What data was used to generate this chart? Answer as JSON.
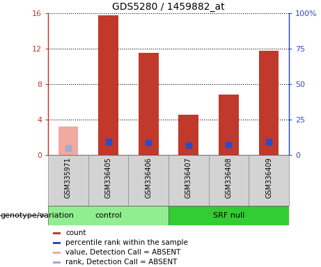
{
  "title": "GDS5280 / 1459882_at",
  "samples": [
    "GSM335971",
    "GSM336405",
    "GSM336406",
    "GSM336407",
    "GSM336408",
    "GSM336409"
  ],
  "groups": [
    "control",
    "control",
    "control",
    "SRF null",
    "SRF null",
    "SRF null"
  ],
  "bar_values": [
    null,
    15.8,
    11.5,
    4.5,
    6.8,
    11.8
  ],
  "bar_values_absent": [
    3.2,
    null,
    null,
    null,
    null,
    null
  ],
  "rank_values": [
    null,
    9.0,
    8.5,
    6.8,
    7.0,
    9.0
  ],
  "rank_values_absent": [
    5.0,
    null,
    null,
    null,
    null,
    null
  ],
  "bar_color": "#c0392b",
  "bar_color_absent": "#f1a9a0",
  "rank_color": "#2e4ac4",
  "rank_color_absent": "#a0aad4",
  "ylim_left": [
    0,
    16
  ],
  "ylim_right": [
    0,
    100
  ],
  "yticks_left": [
    0,
    4,
    8,
    12,
    16
  ],
  "ytick_labels_left": [
    "0",
    "4",
    "8",
    "12",
    "16"
  ],
  "yticks_right": [
    0,
    25,
    50,
    75,
    100
  ],
  "ytick_labels_right": [
    "0",
    "25",
    "50",
    "75",
    "100%"
  ],
  "group_colors": {
    "control": "#90ee90",
    "SRF null": "#32cd32"
  },
  "group_label": "genotype/variation",
  "bar_width": 0.5,
  "rank_marker_size": 40,
  "legend_items": [
    {
      "label": "count",
      "color": "#c0392b"
    },
    {
      "label": "percentile rank within the sample",
      "color": "#2e4ac4"
    },
    {
      "label": "value, Detection Call = ABSENT",
      "color": "#f1a9a0"
    },
    {
      "label": "rank, Detection Call = ABSENT",
      "color": "#a0aad4"
    }
  ]
}
